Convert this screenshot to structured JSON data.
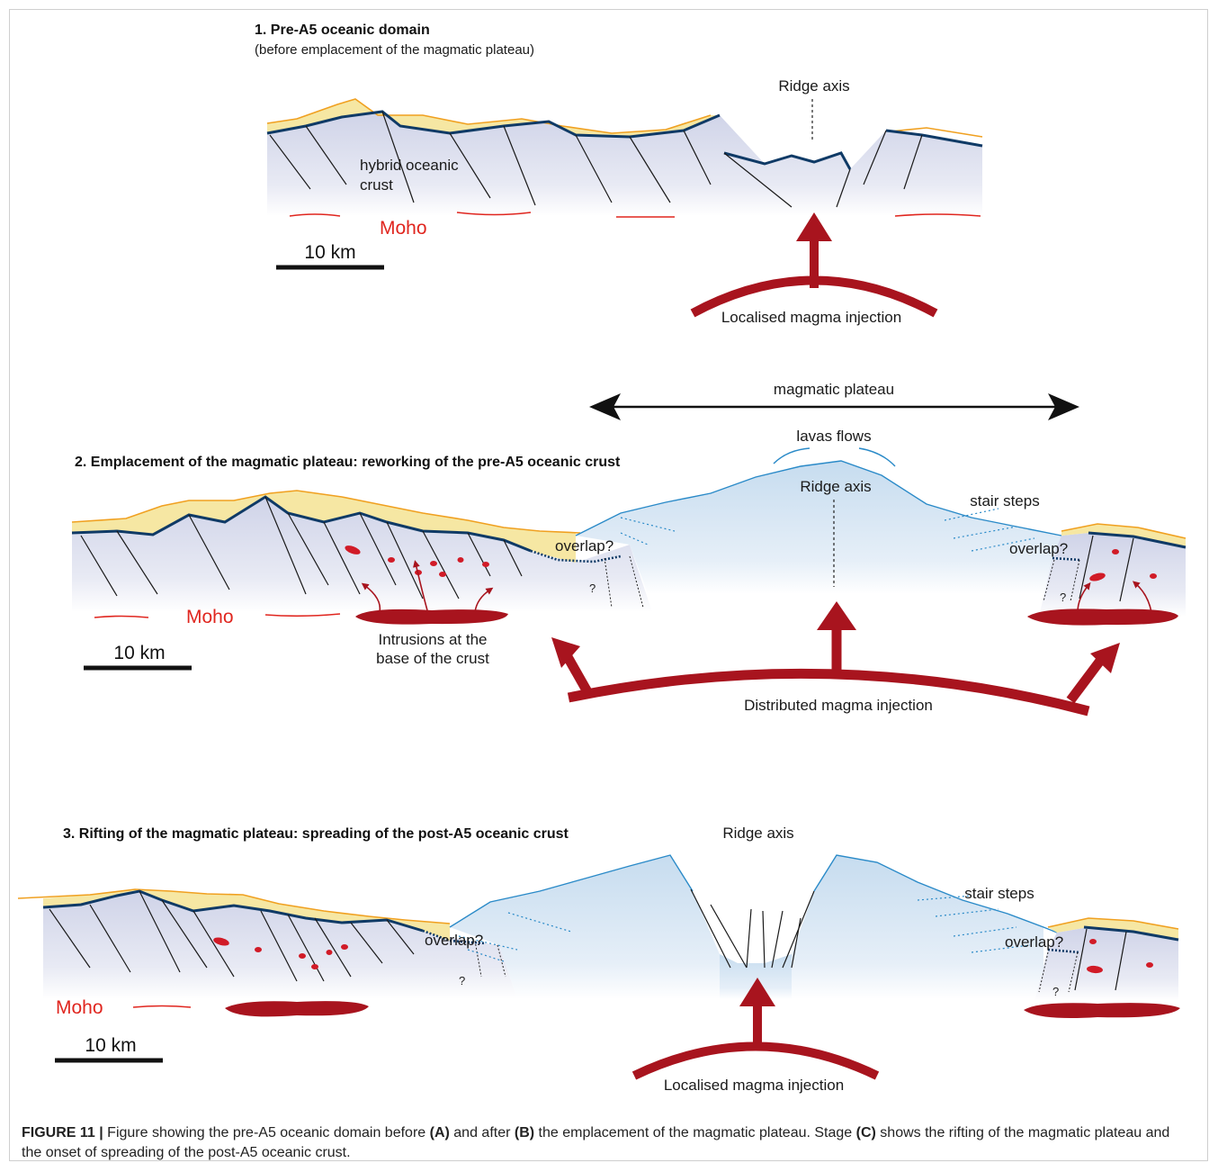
{
  "panel1": {
    "title": "1. Pre-A5 oceanic domain",
    "subtitle": "(before emplacement of the magmatic plateau)",
    "ridge_axis": "Ridge axis",
    "crust_line1": "hybrid oceanic",
    "crust_line2": "crust",
    "moho": "Moho",
    "scale": "10 km",
    "injection": "Localised magma injection"
  },
  "panel2": {
    "title": "2. Emplacement of the magmatic plateau: reworking of the pre-A5 oceanic crust",
    "plateau": "magmatic plateau",
    "lavas": "lavas flows",
    "ridge_axis": "Ridge axis",
    "stair_steps": "stair steps",
    "overlap": "overlap?",
    "question": "?",
    "moho": "Moho",
    "scale": "10 km",
    "intrusions_line1": "Intrusions at the",
    "intrusions_line2": "base of the crust",
    "injection": "Distributed magma injection"
  },
  "panel3": {
    "title": "3. Rifting of the magmatic plateau: spreading of the post-A5 oceanic crust",
    "ridge_axis": "Ridge axis",
    "stair_steps": "stair steps",
    "overlap": "overlap?",
    "question": "?",
    "moho": "Moho",
    "scale": "10 km",
    "injection": "Localised magma injection"
  },
  "caption": {
    "label": "FIGURE 11 |",
    "t1": " Figure showing the pre-A5 oceanic domain before ",
    "a": "(A)",
    "t2": " and after ",
    "b": "(B)",
    "t3": " the emplacement of the magmatic plateau. Stage ",
    "c": "(C)",
    "t4": " shows the rifting of the magmatic plateau and the onset of spreading of the post-A5 oceanic crust."
  },
  "colors": {
    "sediment": "#f6e7a3",
    "sediment_line": "#f0a020",
    "crust": "#d9dcec",
    "basement_line": "#0f3a66",
    "plateau": "#cfe2f1",
    "plateau_line": "#2a8ac8",
    "magma": "#a8141e",
    "moho": "#e0261f"
  }
}
